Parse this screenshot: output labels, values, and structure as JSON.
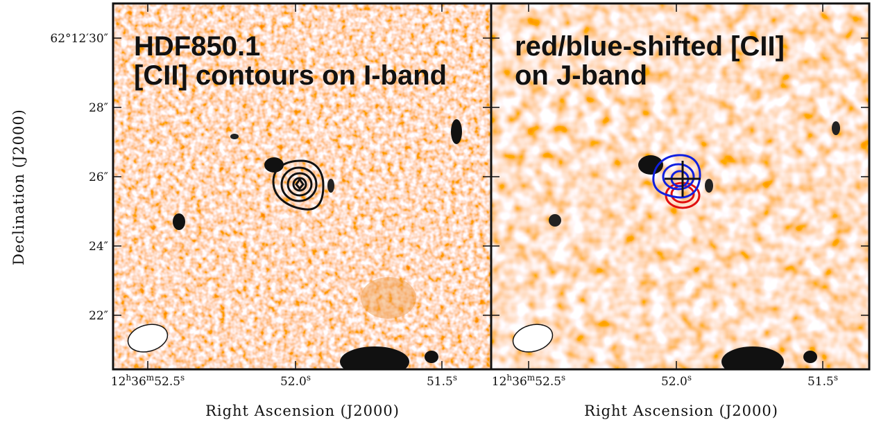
{
  "panels": [
    {
      "title_lines": [
        "HDF850.1",
        "[CII] contours on I-band"
      ]
    },
    {
      "title_lines": [
        "red/blue-shifted [CII]",
        "on J-band"
      ]
    }
  ],
  "y_axis": {
    "label": "Declination (J2000)",
    "ticks": [
      "62°12′30″",
      "28″",
      "26″",
      "24″",
      "22″"
    ]
  },
  "x_axis": {
    "label": "Right Ascension (J2000)",
    "ticks": [
      [
        "12",
        "h",
        "36",
        "m",
        "52.5",
        "s"
      ],
      [
        "52.0",
        "s"
      ],
      [
        "51.5",
        "s"
      ]
    ]
  }
}
